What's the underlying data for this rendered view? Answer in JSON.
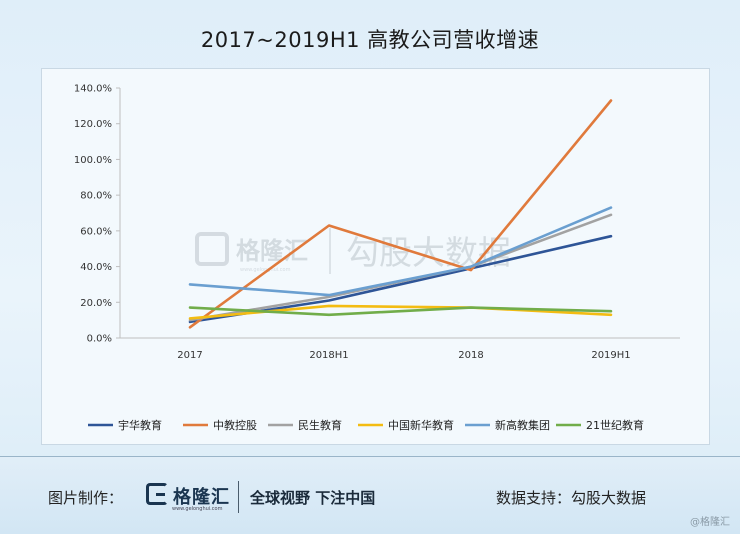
{
  "chart_data": {
    "type": "line",
    "title": "2017~2019H1 高教公司营收增速",
    "categories": [
      "2017",
      "2018H1",
      "2018",
      "2019H1"
    ],
    "y_ticks": [
      "0.0%",
      "20.0%",
      "40.0%",
      "60.0%",
      "80.0%",
      "100.0%",
      "120.0%",
      "140.0%"
    ],
    "ylim": [
      0,
      140
    ],
    "y_unit": "%",
    "grid": false,
    "legend_position": "bottom",
    "series": [
      {
        "name": "宇华教育",
        "values": [
          9,
          21,
          39,
          57
        ],
        "color": "#2e5597"
      },
      {
        "name": "中教控股",
        "values": [
          6,
          63,
          38,
          133
        ],
        "color": "#e07a3c"
      },
      {
        "name": "民生教育",
        "values": [
          10,
          23,
          40,
          69
        ],
        "color": "#a2a2a2"
      },
      {
        "name": "中国新华教育",
        "values": [
          11,
          18,
          17,
          13
        ],
        "color": "#f3bc12"
      },
      {
        "name": "新高教集团",
        "values": [
          30,
          24,
          40,
          73
        ],
        "color": "#6a9fd0"
      },
      {
        "name": "21世纪教育",
        "values": [
          17,
          13,
          17,
          15
        ],
        "color": "#71ad4a"
      }
    ]
  },
  "watermark": {
    "brand": "格隆汇",
    "url": "www.gelonghui.com",
    "partner": "勾股大数据"
  },
  "footer": {
    "made_by_label": "图片制作：",
    "logo_name": "格隆汇",
    "logo_url": "www.gelonghui.com",
    "slogan": "全球视野 下注中国",
    "support_label": "数据支持：",
    "support_name": "勾股大数据",
    "credit": "@格隆汇"
  }
}
